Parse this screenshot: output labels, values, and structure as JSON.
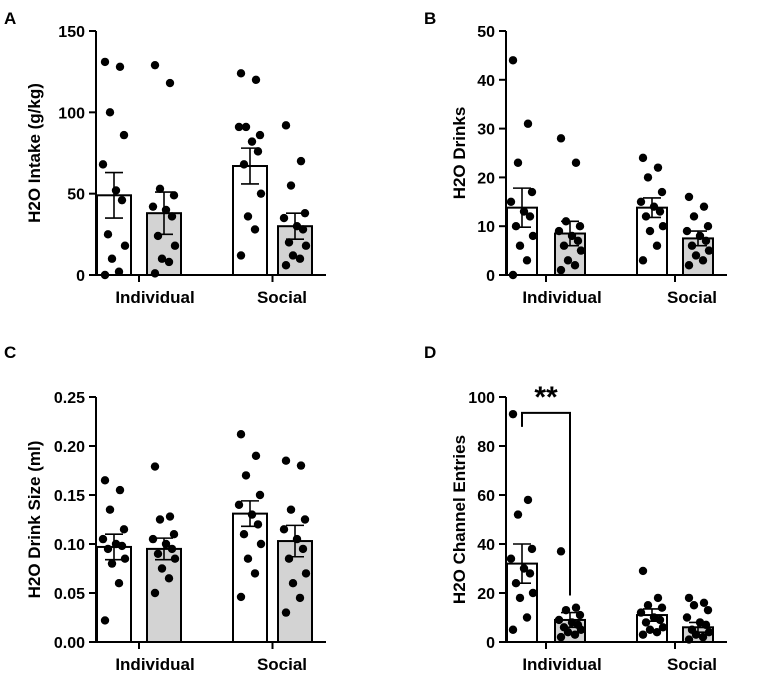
{
  "chart_data": [
    {
      "panel": "A",
      "type": "bar",
      "ylabel": "H2O Intake (g/kg)",
      "ylim": [
        0,
        150
      ],
      "yticks": [
        0,
        50,
        100,
        150
      ],
      "categories": [
        "Individual",
        "Social"
      ],
      "series": [
        {
          "name": "group-white",
          "fill": "#ffffff",
          "values": [
            49,
            67
          ],
          "sem": [
            14,
            11
          ],
          "points": [
            [
              131,
              128,
              100,
              86,
              68,
              52,
              46,
              25,
              18,
              10,
              2,
              0
            ],
            [
              124,
              120,
              91,
              86,
              91,
              82,
              76,
              68,
              50,
              36,
              28,
              12
            ]
          ]
        },
        {
          "name": "group-gray",
          "fill": "#d3d3d3",
          "values": [
            38,
            30
          ],
          "sem": [
            13,
            8
          ],
          "points": [
            [
              129,
              118,
              53,
              49,
              42,
              40,
              36,
              24,
              18,
              10,
              8,
              1
            ],
            [
              92,
              70,
              55,
              38,
              35,
              30,
              28,
              20,
              18,
              12,
              10,
              6
            ]
          ]
        }
      ]
    },
    {
      "panel": "B",
      "type": "bar",
      "ylabel": "H2O Drinks",
      "ylim": [
        0,
        50
      ],
      "yticks": [
        0,
        10,
        20,
        30,
        40,
        50
      ],
      "categories": [
        "Individual",
        "Social"
      ],
      "series": [
        {
          "name": "group-white",
          "fill": "#ffffff",
          "values": [
            13.8,
            13.8
          ],
          "sem": [
            4.0,
            2.0
          ],
          "points": [
            [
              44,
              31,
              23,
              17,
              15,
              13,
              12,
              10,
              8,
              6,
              3,
              0
            ],
            [
              24,
              22,
              20,
              17,
              15,
              14,
              13,
              12,
              10,
              9,
              6,
              3
            ]
          ]
        },
        {
          "name": "group-gray",
          "fill": "#d3d3d3",
          "values": [
            8.5,
            7.5
          ],
          "sem": [
            2.5,
            1.5
          ],
          "points": [
            [
              28,
              23,
              11,
              10,
              9,
              8,
              7,
              6,
              5,
              3,
              2,
              1
            ],
            [
              16,
              14,
              12,
              10,
              9,
              8,
              7,
              6,
              5,
              4,
              3,
              2
            ]
          ]
        }
      ]
    },
    {
      "panel": "C",
      "type": "bar",
      "ylabel": "H2O Drink Size (ml)",
      "ylim": [
        0,
        0.25
      ],
      "yticks": [
        "0.00",
        "0.05",
        "0.10",
        "0.15",
        "0.20",
        "0.25"
      ],
      "categories": [
        "Individual",
        "Social"
      ],
      "series": [
        {
          "name": "group-white",
          "fill": "#ffffff",
          "values": [
            0.097,
            0.131
          ],
          "sem": [
            0.013,
            0.013
          ],
          "points": [
            [
              0.165,
              0.155,
              0.135,
              0.115,
              0.105,
              0.1,
              0.098,
              0.095,
              0.085,
              0.08,
              0.06,
              0.022
            ],
            [
              0.212,
              0.19,
              0.17,
              0.15,
              0.14,
              0.13,
              0.12,
              0.11,
              0.1,
              0.085,
              0.07,
              0.046
            ]
          ]
        },
        {
          "name": "group-gray",
          "fill": "#d3d3d3",
          "values": [
            0.095,
            0.103
          ],
          "sem": [
            0.011,
            0.016
          ],
          "points": [
            [
              0.179,
              0.128,
              0.125,
              0.11,
              0.105,
              0.1,
              0.095,
              0.09,
              0.085,
              0.075,
              0.065,
              0.05
            ],
            [
              0.185,
              0.18,
              0.135,
              0.125,
              0.115,
              0.105,
              0.095,
              0.085,
              0.07,
              0.06,
              0.045,
              0.03
            ]
          ]
        }
      ]
    },
    {
      "panel": "D",
      "type": "bar",
      "ylabel": "H2O Channel Entries",
      "ylim": [
        0,
        100
      ],
      "yticks": [
        0,
        20,
        40,
        60,
        80,
        100
      ],
      "categories": [
        "Individual",
        "Social"
      ],
      "significance": {
        "label": "**"
      },
      "series": [
        {
          "name": "group-white",
          "fill": "#ffffff",
          "values": [
            32,
            11
          ],
          "sem": [
            8,
            2.5
          ],
          "points": [
            [
              93,
              58,
              52,
              38,
              34,
              30,
              28,
              24,
              20,
              18,
              10,
              5
            ],
            [
              29,
              18,
              15,
              14,
              12,
              10,
              9,
              8,
              6,
              5,
              4,
              3
            ]
          ]
        },
        {
          "name": "group-gray",
          "fill": "#d3d3d3",
          "values": [
            9,
            6
          ],
          "sem": [
            3,
            2
          ],
          "points": [
            [
              37,
              14,
              13,
              11,
              9,
              8,
              7,
              6,
              5,
              4,
              3,
              2
            ],
            [
              18,
              16,
              15,
              13,
              10,
              8,
              7,
              5,
              4,
              3,
              2,
              1
            ]
          ]
        }
      ]
    }
  ]
}
